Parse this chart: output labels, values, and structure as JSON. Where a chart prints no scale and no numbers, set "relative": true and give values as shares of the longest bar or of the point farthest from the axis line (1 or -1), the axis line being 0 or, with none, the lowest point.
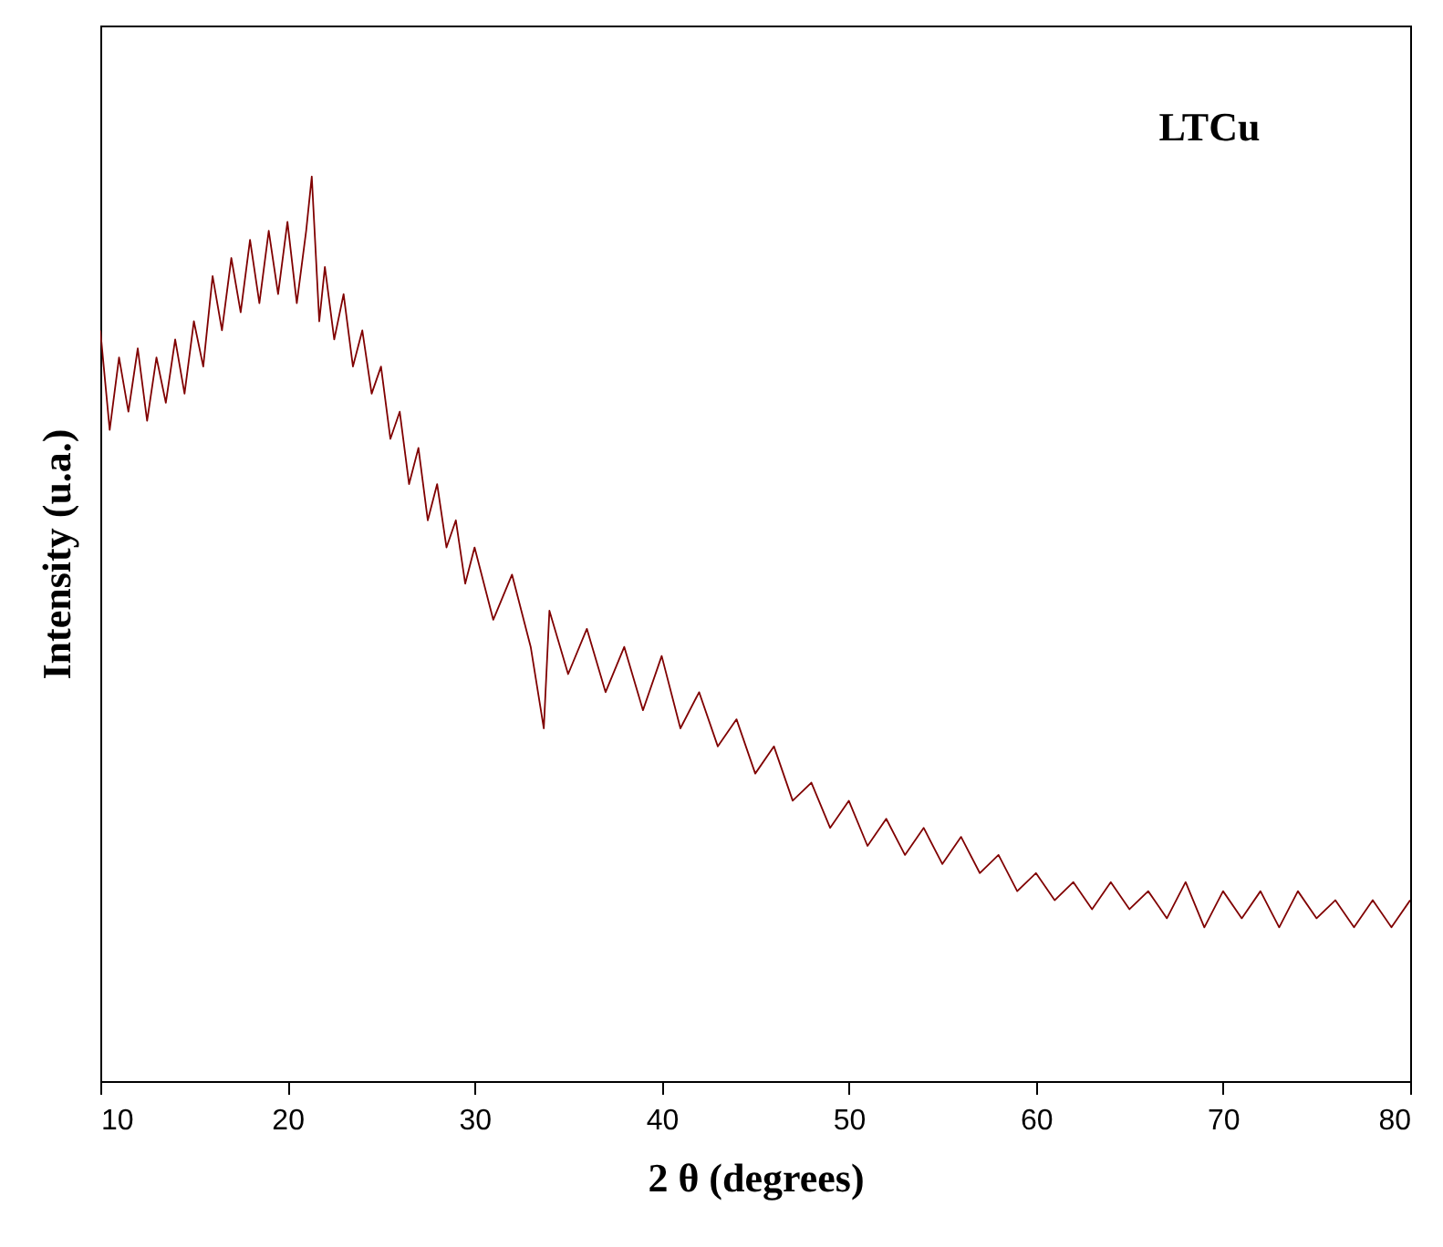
{
  "chart_data": {
    "type": "line",
    "xlabel": "2 θ (degrees)",
    "ylabel": "Intensity (u.a.)",
    "annotations": [
      "LTCu"
    ],
    "relative": true,
    "xlim": [
      10,
      80
    ],
    "xticks": [
      10,
      20,
      30,
      40,
      50,
      60,
      70,
      80
    ],
    "x": [
      10,
      10.5,
      11,
      11.5,
      12,
      12.5,
      13,
      13.5,
      14,
      14.5,
      15,
      15.5,
      16,
      16.5,
      17,
      17.5,
      18,
      18.5,
      19,
      19.5,
      20,
      20.5,
      21,
      21.3,
      21.7,
      22,
      22.5,
      23,
      23.5,
      24,
      24.5,
      25,
      25.5,
      26,
      26.5,
      27,
      27.5,
      28,
      28.5,
      29,
      29.5,
      30,
      31,
      32,
      33,
      33.7,
      34,
      35,
      36,
      37,
      38,
      39,
      40,
      41,
      42,
      43,
      44,
      45,
      46,
      47,
      48,
      49,
      50,
      51,
      52,
      53,
      54,
      55,
      56,
      57,
      58,
      59,
      60,
      61,
      62,
      63,
      64,
      65,
      66,
      67,
      68,
      69,
      70,
      71,
      72,
      73,
      74,
      75,
      76,
      77,
      78,
      79,
      80
    ],
    "series": [
      {
        "color": "#800000",
        "values": [
          0.83,
          0.72,
          0.8,
          0.74,
          0.81,
          0.73,
          0.8,
          0.75,
          0.82,
          0.76,
          0.84,
          0.79,
          0.89,
          0.83,
          0.91,
          0.85,
          0.93,
          0.86,
          0.94,
          0.87,
          0.95,
          0.86,
          0.94,
          1,
          0.84,
          0.9,
          0.82,
          0.87,
          0.79,
          0.83,
          0.76,
          0.79,
          0.71,
          0.74,
          0.66,
          0.7,
          0.62,
          0.66,
          0.59,
          0.62,
          0.55,
          0.59,
          0.51,
          0.56,
          0.48,
          0.39,
          0.52,
          0.45,
          0.5,
          0.43,
          0.48,
          0.41,
          0.47,
          0.39,
          0.43,
          0.37,
          0.4,
          0.34,
          0.37,
          0.31,
          0.33,
          0.28,
          0.31,
          0.26,
          0.29,
          0.25,
          0.28,
          0.24,
          0.27,
          0.23,
          0.25,
          0.21,
          0.23,
          0.2,
          0.22,
          0.19,
          0.22,
          0.19,
          0.21,
          0.18,
          0.22,
          0.17,
          0.21,
          0.18,
          0.21,
          0.17,
          0.21,
          0.18,
          0.2,
          0.17,
          0.2,
          0.17,
          0.2
        ]
      }
    ]
  }
}
